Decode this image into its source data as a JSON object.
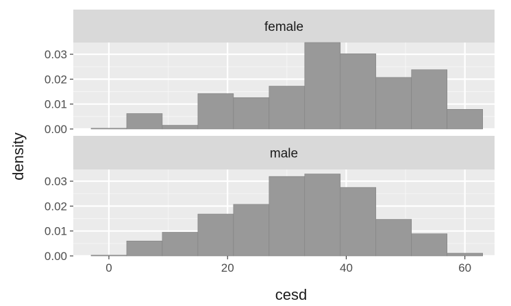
{
  "chart_data": {
    "type": "histogram",
    "xlabel": "cesd",
    "ylabel": "density",
    "xlim": [
      -6,
      65
    ],
    "ylim": [
      0,
      0.0347
    ],
    "x_ticks": [
      0,
      20,
      40,
      60
    ],
    "x_tick_labels": [
      "0",
      "20",
      "40",
      "60"
    ],
    "y_ticks": [
      0.0,
      0.01,
      0.02,
      0.03
    ],
    "y_tick_labels": [
      "0.00",
      "0.01",
      "0.02",
      "0.03"
    ],
    "grid": true,
    "bin_edges": [
      -3,
      3,
      9,
      15,
      21,
      27,
      33,
      39,
      45,
      51,
      57,
      63
    ],
    "colors": {
      "bar_fill": "#999999",
      "bar_stroke": "#7f7f7f",
      "panel_bg": "#ebebeb",
      "strip_bg": "#d9d9d9",
      "grid_major": "#ffffff",
      "grid_minor": "#f5f5f5",
      "text": "#1a1a1a",
      "tick_text": "#4d4d4d"
    },
    "panels": [
      {
        "name": "female",
        "values": [
          0.0003,
          0.0062,
          0.0015,
          0.0142,
          0.0126,
          0.0172,
          0.0347,
          0.0302,
          0.0207,
          0.0238,
          0.0079
        ]
      },
      {
        "name": "male",
        "values": [
          0.0003,
          0.006,
          0.0095,
          0.0168,
          0.0207,
          0.0319,
          0.0329,
          0.0275,
          0.0147,
          0.0089,
          0.0011
        ]
      }
    ]
  }
}
